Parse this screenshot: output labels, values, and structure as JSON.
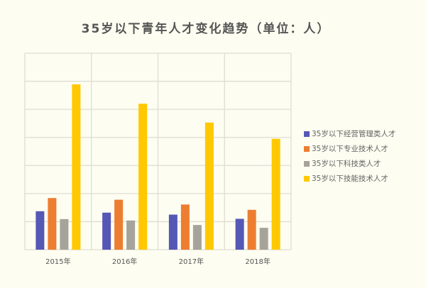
{
  "chart_data": {
    "type": "bar",
    "title": "35岁以下青年人才变化趋势（单位：人）",
    "xlabel": "",
    "ylabel": "",
    "categories": [
      "2015年",
      "2016年",
      "2017年",
      "2018年"
    ],
    "ylim": [
      0,
      7
    ],
    "y_tick_labels_shown": false,
    "grid": true,
    "legend_position": "right",
    "series": [
      {
        "name": "35岁以下经营管理类人才",
        "color": "#5558b5",
        "values": [
          1.37,
          1.32,
          1.25,
          1.1
        ]
      },
      {
        "name": "35岁以下专业技术人才",
        "color": "#ed7d31",
        "values": [
          1.84,
          1.78,
          1.61,
          1.42
        ]
      },
      {
        "name": "35岁以下科技类人才",
        "color": "#a5a39a",
        "values": [
          1.09,
          1.04,
          0.88,
          0.78
        ]
      },
      {
        "name": "35岁以下技能技术人才",
        "color": "#ffc800",
        "values": [
          5.89,
          5.2,
          4.53,
          3.95
        ]
      }
    ]
  }
}
